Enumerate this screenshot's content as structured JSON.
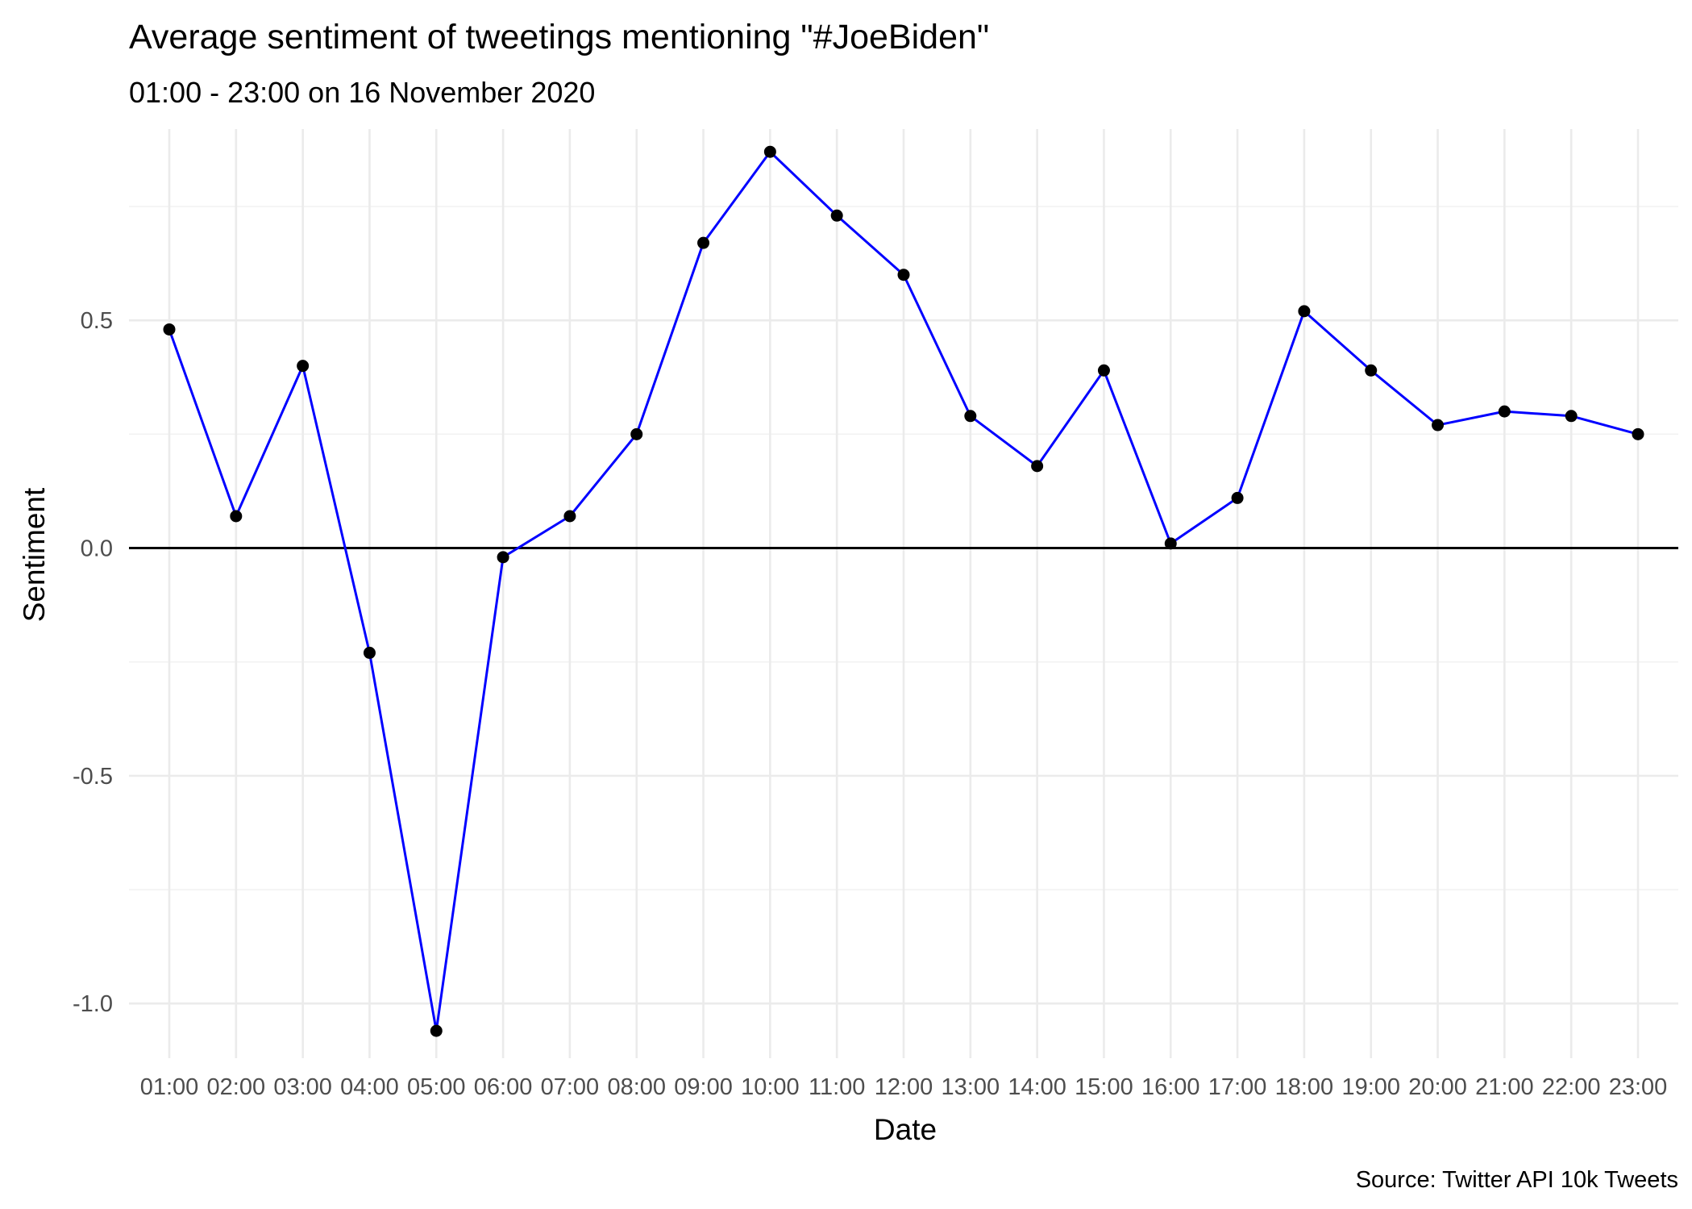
{
  "chart_data": {
    "type": "line",
    "title": "Average sentiment of tweetings mentioning \"#JoeBiden\"",
    "subtitle": "01:00 - 23:00 on 16 November 2020",
    "xlabel": "Date",
    "ylabel": "Sentiment",
    "caption": "Source: Twitter API 10k Tweets",
    "categories": [
      "01:00",
      "02:00",
      "03:00",
      "04:00",
      "05:00",
      "06:00",
      "07:00",
      "08:00",
      "09:00",
      "10:00",
      "11:00",
      "12:00",
      "13:00",
      "14:00",
      "15:00",
      "16:00",
      "17:00",
      "18:00",
      "19:00",
      "20:00",
      "21:00",
      "22:00",
      "23:00"
    ],
    "values": [
      0.48,
      0.07,
      0.4,
      -0.23,
      -1.06,
      -0.02,
      0.07,
      0.25,
      0.67,
      0.87,
      0.73,
      0.6,
      0.29,
      0.18,
      0.39,
      0.01,
      0.11,
      0.52,
      0.39,
      0.27,
      0.3,
      0.29,
      0.25
    ],
    "ylim": [
      -1.12,
      0.92
    ],
    "yticks": [
      -1.0,
      -0.5,
      0.0,
      0.5
    ],
    "ytick_labels": [
      "-1.0",
      "-0.5",
      "0.0",
      "0.5"
    ],
    "reference_line": 0,
    "grid": true,
    "legend": "none",
    "colors": {
      "line": "#0000ff",
      "points": "#000000",
      "reference_line": "#000000"
    }
  }
}
